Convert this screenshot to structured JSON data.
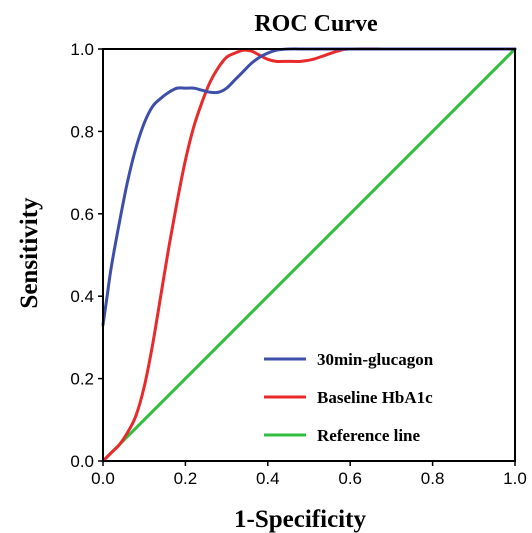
{
  "chart_data": {
    "type": "line",
    "title": "ROC Curve",
    "xlabel": "1-Specificity",
    "ylabel": "Sensitivity",
    "xlim": [
      0,
      1
    ],
    "ylim": [
      0,
      1
    ],
    "xticks": [
      "0.0",
      "0.2",
      "0.4",
      "0.6",
      "0.8",
      "1.0"
    ],
    "yticks": [
      "0.0",
      "0.2",
      "0.4",
      "0.6",
      "0.8",
      "1.0"
    ],
    "grid": false,
    "legend_position": "bottom-right",
    "series": [
      {
        "name": "30min-glucagon",
        "color": "#3d4fa8",
        "points": [
          [
            0.0,
            0.33
          ],
          [
            0.01,
            0.4
          ],
          [
            0.02,
            0.47
          ],
          [
            0.04,
            0.58
          ],
          [
            0.06,
            0.68
          ],
          [
            0.08,
            0.76
          ],
          [
            0.1,
            0.82
          ],
          [
            0.12,
            0.86
          ],
          [
            0.14,
            0.88
          ],
          [
            0.16,
            0.895
          ],
          [
            0.18,
            0.905
          ],
          [
            0.2,
            0.905
          ],
          [
            0.22,
            0.905
          ],
          [
            0.24,
            0.9
          ],
          [
            0.26,
            0.895
          ],
          [
            0.28,
            0.895
          ],
          [
            0.3,
            0.905
          ],
          [
            0.32,
            0.925
          ],
          [
            0.34,
            0.945
          ],
          [
            0.36,
            0.965
          ],
          [
            0.38,
            0.98
          ],
          [
            0.4,
            0.99
          ],
          [
            0.42,
            0.997
          ],
          [
            0.45,
            1.0
          ],
          [
            0.5,
            1.0
          ],
          [
            0.6,
            1.0
          ],
          [
            0.7,
            1.0
          ],
          [
            0.8,
            1.0
          ],
          [
            0.9,
            1.0
          ],
          [
            1.0,
            1.0
          ]
        ]
      },
      {
        "name": "Baseline HbA1c",
        "color": "#e82a2a",
        "points": [
          [
            0.0,
            0.0
          ],
          [
            0.02,
            0.02
          ],
          [
            0.04,
            0.04
          ],
          [
            0.06,
            0.07
          ],
          [
            0.08,
            0.11
          ],
          [
            0.1,
            0.18
          ],
          [
            0.12,
            0.28
          ],
          [
            0.14,
            0.4
          ],
          [
            0.16,
            0.52
          ],
          [
            0.18,
            0.63
          ],
          [
            0.2,
            0.73
          ],
          [
            0.22,
            0.81
          ],
          [
            0.24,
            0.87
          ],
          [
            0.26,
            0.92
          ],
          [
            0.28,
            0.955
          ],
          [
            0.3,
            0.98
          ],
          [
            0.32,
            0.99
          ],
          [
            0.34,
            0.997
          ],
          [
            0.36,
            0.995
          ],
          [
            0.38,
            0.985
          ],
          [
            0.4,
            0.975
          ],
          [
            0.42,
            0.97
          ],
          [
            0.45,
            0.97
          ],
          [
            0.48,
            0.97
          ],
          [
            0.51,
            0.975
          ],
          [
            0.54,
            0.985
          ],
          [
            0.57,
            0.995
          ],
          [
            0.6,
            1.0
          ],
          [
            0.7,
            1.0
          ],
          [
            0.8,
            1.0
          ],
          [
            0.9,
            1.0
          ],
          [
            1.0,
            1.0
          ]
        ]
      },
      {
        "name": "Reference line",
        "color": "#2fbf3c",
        "points": [
          [
            0.0,
            0.0
          ],
          [
            1.0,
            1.0
          ]
        ]
      }
    ]
  }
}
